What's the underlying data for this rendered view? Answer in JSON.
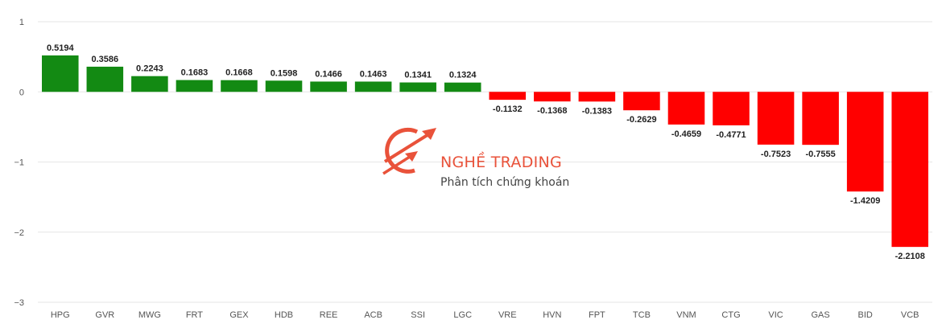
{
  "chart_data": {
    "type": "bar",
    "categories": [
      "HPG",
      "GVR",
      "MWG",
      "FRT",
      "GEX",
      "HDB",
      "REE",
      "ACB",
      "SSI",
      "LGC",
      "VRE",
      "HVN",
      "FPT",
      "TCB",
      "VNM",
      "CTG",
      "VIC",
      "GAS",
      "BID",
      "VCB"
    ],
    "values": [
      0.5194,
      0.3586,
      0.2243,
      0.1683,
      0.1668,
      0.1598,
      0.1466,
      0.1463,
      0.1341,
      0.1324,
      -0.1132,
      -0.1368,
      -0.1383,
      -0.2629,
      -0.4659,
      -0.4771,
      -0.7523,
      -0.7555,
      -1.4209,
      -2.2108
    ],
    "value_labels": [
      "0.5194",
      "0.3586",
      "0.2243",
      "0.1683",
      "0.1668",
      "0.1598",
      "0.1466",
      "0.1463",
      "0.1341",
      "0.1324",
      "-0.1132",
      "-0.1368",
      "-0.1383",
      "-0.2629",
      "-0.4659",
      "-0.4771",
      "-0.7523",
      "-0.7555",
      "-1.4209",
      "-2.2108"
    ],
    "ylim": [
      -3,
      1
    ],
    "yticks": [
      1,
      0,
      -1,
      -2,
      -3
    ],
    "ytick_labels": [
      "1",
      "0",
      "−1",
      "−2",
      "−3"
    ],
    "grid": true,
    "colors": {
      "positive": "#138a13",
      "negative": "#ff0000"
    }
  },
  "watermark": {
    "title": "NGHỀ TRADING",
    "subtitle": "Phân tích chứng khoán",
    "color": "#e8442a"
  }
}
